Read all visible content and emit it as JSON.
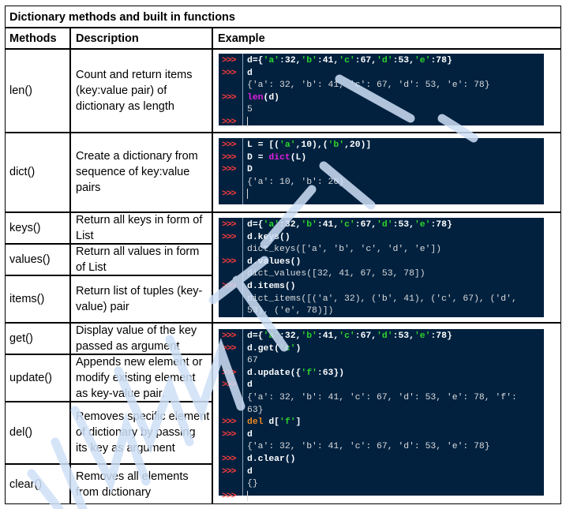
{
  "title": "Dictionary methods and built in functions",
  "headers": {
    "methods": "Methods",
    "description": "Description",
    "example": "Example"
  },
  "rows": [
    {
      "method": "len()",
      "description": "Count and return items (key:value pair) of dictionary as length"
    },
    {
      "method": "dict()",
      "description": "Create a dictionary from sequence of key:value pairs"
    },
    {
      "method": "keys()",
      "description": "Return all keys in form of List"
    },
    {
      "method": "values()",
      "description": "Return all values in form of List"
    },
    {
      "method": "items()",
      "description": "Return list of tuples (key-value) pair"
    },
    {
      "method": "get()",
      "description": "Display value of the key passed as argument"
    },
    {
      "method": "update()",
      "description": "Appends  new element or modify existing element as key-value pair."
    },
    {
      "method": "del()",
      "description": "Removes specific element of dictionary by passing its key as argument"
    },
    {
      "method": "clear()",
      "description": "Removes all elements from dictionary"
    }
  ],
  "prompt": ">>>",
  "examples": {
    "len": [
      {
        "prompt": true,
        "parts": [
          [
            "d={",
            ""
          ],
          [
            "'a'",
            "s"
          ],
          [
            ":32,",
            ""
          ],
          [
            "'b'",
            "s"
          ],
          [
            ":41,",
            ""
          ],
          [
            "'c'",
            "s"
          ],
          [
            ":67,",
            ""
          ],
          [
            "'d'",
            "s"
          ],
          [
            ":53,",
            ""
          ],
          [
            "'e'",
            "s"
          ],
          [
            ":78}",
            ""
          ]
        ]
      },
      {
        "prompt": true,
        "parts": [
          [
            "d",
            ""
          ]
        ]
      },
      {
        "prompt": false,
        "out": true,
        "parts": [
          [
            "{'a': 32, 'b': 41, 'c': 67, 'd': 53, 'e': 78}",
            ""
          ]
        ]
      },
      {
        "prompt": true,
        "parts": [
          [
            "len",
            "kw-builtin"
          ],
          [
            "(d)",
            ""
          ]
        ]
      },
      {
        "prompt": false,
        "out": true,
        "parts": [
          [
            "5",
            ""
          ]
        ]
      },
      {
        "prompt": true,
        "cursor": true,
        "parts": []
      }
    ],
    "dict": [
      {
        "prompt": true,
        "parts": [
          [
            "L = [(",
            ""
          ],
          [
            "'a'",
            "s"
          ],
          [
            ",10),(",
            ""
          ],
          [
            "'b'",
            "s"
          ],
          [
            ",20)]",
            ""
          ]
        ]
      },
      {
        "prompt": true,
        "parts": [
          [
            "D = ",
            ""
          ],
          [
            "dict",
            "kw-builtin"
          ],
          [
            "(L)",
            ""
          ]
        ]
      },
      {
        "prompt": true,
        "parts": [
          [
            "D",
            ""
          ]
        ]
      },
      {
        "prompt": false,
        "out": true,
        "parts": [
          [
            "{'a': 10, 'b': 20}",
            ""
          ]
        ]
      },
      {
        "prompt": true,
        "cursor": true,
        "parts": []
      }
    ],
    "keys_values_items": [
      {
        "prompt": true,
        "parts": [
          [
            "d={",
            ""
          ],
          [
            "'a'",
            "s"
          ],
          [
            ":32,",
            ""
          ],
          [
            "'b'",
            "s"
          ],
          [
            ":41,",
            ""
          ],
          [
            "'c'",
            "s"
          ],
          [
            ":67,",
            ""
          ],
          [
            "'d'",
            "s"
          ],
          [
            ":53,",
            ""
          ],
          [
            "'e'",
            "s"
          ],
          [
            ":78}",
            ""
          ]
        ]
      },
      {
        "prompt": true,
        "parts": [
          [
            "d.keys()",
            ""
          ]
        ]
      },
      {
        "prompt": false,
        "out": true,
        "parts": [
          [
            "dict_keys(['a', 'b', 'c', 'd', 'e'])",
            ""
          ]
        ]
      },
      {
        "prompt": true,
        "parts": [
          [
            "d.values()",
            ""
          ]
        ]
      },
      {
        "prompt": false,
        "out": true,
        "parts": [
          [
            "dict_values([32, 41, 67, 53, 78])",
            ""
          ]
        ]
      },
      {
        "prompt": true,
        "parts": [
          [
            "d.items()",
            ""
          ]
        ]
      },
      {
        "prompt": false,
        "out": true,
        "parts": [
          [
            "dict_items([('a', 32), ('b', 41), ('c', 67), ('d',",
            ""
          ]
        ]
      },
      {
        "prompt": false,
        "out": true,
        "parts": [
          [
            "53), ('e', 78)])",
            ""
          ]
        ]
      }
    ],
    "get_update_del_clear": [
      {
        "prompt": true,
        "parts": [
          [
            "d={",
            ""
          ],
          [
            "'a'",
            "s"
          ],
          [
            ":32,",
            ""
          ],
          [
            "'b'",
            "s"
          ],
          [
            ":41,",
            ""
          ],
          [
            "'c'",
            "s"
          ],
          [
            ":67,",
            ""
          ],
          [
            "'d'",
            "s"
          ],
          [
            ":53,",
            ""
          ],
          [
            "'e'",
            "s"
          ],
          [
            ":78}",
            ""
          ]
        ]
      },
      {
        "prompt": true,
        "parts": [
          [
            "d.get(",
            ""
          ],
          [
            "'c'",
            "s"
          ],
          [
            ")",
            ""
          ]
        ]
      },
      {
        "prompt": false,
        "out": true,
        "parts": [
          [
            "67",
            ""
          ]
        ]
      },
      {
        "prompt": true,
        "parts": [
          [
            "d.update({",
            ""
          ],
          [
            "'f'",
            "s"
          ],
          [
            ":63})",
            ""
          ]
        ]
      },
      {
        "prompt": true,
        "parts": [
          [
            "d",
            ""
          ]
        ]
      },
      {
        "prompt": false,
        "out": true,
        "parts": [
          [
            "{'a': 32, 'b': 41, 'c': 67, 'd': 53, 'e': 78, 'f':",
            ""
          ]
        ]
      },
      {
        "prompt": false,
        "out": true,
        "parts": [
          [
            "63}",
            ""
          ]
        ]
      },
      {
        "prompt": true,
        "parts": [
          [
            "del",
            "kw"
          ],
          [
            " d[",
            ""
          ],
          [
            "'f'",
            "s"
          ],
          [
            "]",
            ""
          ]
        ]
      },
      {
        "prompt": true,
        "parts": [
          [
            "d",
            ""
          ]
        ]
      },
      {
        "prompt": false,
        "out": true,
        "parts": [
          [
            "{'a': 32, 'b': 41, 'c': 67, 'd': 53, 'e': 78}",
            ""
          ]
        ]
      },
      {
        "prompt": true,
        "parts": [
          [
            "d.clear()",
            ""
          ]
        ]
      },
      {
        "prompt": true,
        "parts": [
          [
            "d",
            ""
          ]
        ]
      },
      {
        "prompt": false,
        "out": true,
        "parts": [
          [
            "{}",
            ""
          ]
        ]
      },
      {
        "prompt": true,
        "cursor": true,
        "parts": []
      }
    ]
  },
  "colors": {
    "code_bg": "#01213f",
    "prompt": "#ff3b3b",
    "string": "#2cd52c",
    "builtin": "#e020e0",
    "keyword": "#f08a1f",
    "watermark": "#cfe0f7"
  }
}
